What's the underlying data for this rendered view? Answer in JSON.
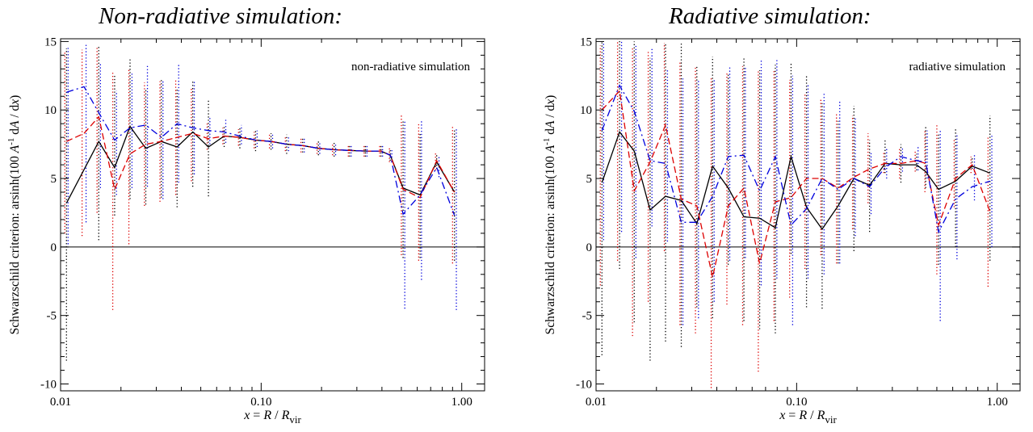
{
  "chart_data": [
    {
      "type": "line",
      "title": "Non-radiative simulation:",
      "annotation": "non-radiative simulation",
      "xlabel_parts": [
        "x",
        " = ",
        "R",
        " / ",
        "R",
        "vir"
      ],
      "ylabel_parts": [
        "Schwarzschild criterion:  arsinh(100 ",
        "A",
        "-1",
        " d",
        "A",
        " / d",
        "x",
        ")"
      ],
      "xscale": "log",
      "xlim": [
        0.01,
        1.3
      ],
      "ylim": [
        -10.5,
        15.2
      ],
      "xticks": [
        0.01,
        0.1,
        1.0
      ],
      "xtick_labels": [
        "0.01",
        "0.10",
        "1.00"
      ],
      "yticks": [
        -10,
        -5,
        0,
        5,
        10,
        15
      ],
      "ytick_labels": [
        "-10",
        "-5",
        "0",
        "5",
        "10",
        "15"
      ],
      "zero_line": 0,
      "series": [
        {
          "style": "solid",
          "color": "#000000",
          "x": [
            0.0107,
            0.0155,
            0.0186,
            0.0222,
            0.0266,
            0.0318,
            0.0381,
            0.0456,
            0.0546,
            0.0654,
            0.0783,
            0.0938,
            0.112,
            0.134,
            0.161,
            0.193,
            0.231,
            0.276,
            0.331,
            0.396,
            0.44,
            0.51,
            0.62,
            0.75,
            0.92
          ],
          "y": [
            3.2,
            7.7,
            5.8,
            8.8,
            7.2,
            7.7,
            7.3,
            8.4,
            7.3,
            8.1,
            8.0,
            7.8,
            7.7,
            7.5,
            7.4,
            7.2,
            7.1,
            7.05,
            7.0,
            7.0,
            6.7,
            4.3,
            3.8,
            6.2,
            4.0
          ]
        },
        {
          "style": "dashed",
          "color": "#dd0000",
          "x": [
            0.0107,
            0.0131,
            0.0155,
            0.0186,
            0.0222,
            0.0266,
            0.0318,
            0.0381,
            0.0456,
            0.0546,
            0.0654,
            0.0783,
            0.0938,
            0.112,
            0.134,
            0.161,
            0.193,
            0.231,
            0.276,
            0.331,
            0.396,
            0.44,
            0.51,
            0.62,
            0.75,
            0.92
          ],
          "y": [
            7.7,
            8.3,
            9.5,
            4.2,
            6.8,
            7.5,
            7.7,
            8.0,
            8.3,
            7.9,
            8.1,
            8.0,
            7.8,
            7.7,
            7.5,
            7.4,
            7.2,
            7.1,
            7.05,
            7.0,
            7.0,
            6.7,
            4.2,
            3.6,
            6.3,
            4.0
          ]
        },
        {
          "style": "dashdot",
          "color": "#0000dd",
          "x": [
            0.0107,
            0.0131,
            0.0155,
            0.0186,
            0.0222,
            0.0266,
            0.0318,
            0.0381,
            0.0456,
            0.0546,
            0.0654,
            0.0783,
            0.0938,
            0.112,
            0.134,
            0.161,
            0.193,
            0.231,
            0.276,
            0.331,
            0.396,
            0.44,
            0.51,
            0.62,
            0.75,
            0.92
          ],
          "y": [
            11.3,
            11.7,
            9.8,
            7.8,
            8.7,
            8.9,
            8.0,
            9.0,
            8.7,
            8.5,
            8.4,
            8.1,
            7.8,
            7.7,
            7.5,
            7.4,
            7.2,
            7.1,
            7.05,
            7.0,
            7.0,
            6.7,
            2.4,
            3.8,
            5.8,
            2.3
          ]
        }
      ],
      "error_bars": [
        {
          "color": "#000000",
          "x": [
            0.0107,
            0.0155,
            0.0186,
            0.0222,
            0.0266,
            0.0318,
            0.0381,
            0.0456,
            0.0546,
            0.0654,
            0.0783,
            0.0938,
            0.112,
            0.134,
            0.161,
            0.193,
            0.231,
            0.276,
            0.331,
            0.396,
            0.44,
            0.51,
            0.62,
            0.75,
            0.92
          ],
          "low": [
            -8.3,
            0.5,
            2.3,
            3.5,
            3.1,
            3.6,
            2.9,
            4.4,
            3.7,
            7.3,
            7.2,
            7.0,
            7.1,
            6.8,
            6.9,
            6.7,
            6.6,
            6.6,
            6.6,
            6.6,
            6.3,
            -0.8,
            -0.8,
            5.7,
            -1.0
          ],
          "high": [
            14.5,
            14.7,
            12.5,
            13.7,
            11.5,
            12.2,
            11.5,
            12.1,
            10.8,
            8.9,
            8.7,
            8.5,
            8.3,
            8.2,
            8.0,
            7.8,
            7.6,
            7.5,
            7.4,
            7.4,
            7.1,
            9.3,
            8.3,
            6.8,
            8.5
          ]
        },
        {
          "color": "#dd0000",
          "x": [
            0.0105,
            0.0128,
            0.0152,
            0.0182,
            0.0219,
            0.0262,
            0.0313,
            0.0375,
            0.0449,
            0.0538,
            0.0644,
            0.0771,
            0.0923,
            0.11,
            0.132,
            0.158,
            0.19,
            0.227,
            0.272,
            0.326,
            0.39,
            0.436,
            0.5,
            0.61,
            0.74,
            0.9
          ],
          "low": [
            1.0,
            0.8,
            2.5,
            -4.6,
            0.2,
            3.0,
            3.3,
            3.8,
            4.8,
            7.1,
            7.5,
            7.4,
            7.2,
            7.2,
            7.0,
            6.9,
            6.8,
            6.7,
            6.6,
            6.6,
            6.6,
            6.2,
            -0.6,
            -1.0,
            5.6,
            -1.2
          ],
          "high": [
            14.3,
            14.4,
            14.6,
            12.8,
            13.0,
            12.0,
            12.1,
            12.2,
            11.7,
            9.0,
            8.7,
            8.6,
            8.4,
            8.2,
            8.1,
            7.9,
            7.7,
            7.6,
            7.5,
            7.4,
            7.4,
            7.2,
            9.6,
            9.1,
            6.9,
            8.8
          ]
        },
        {
          "color": "#0000dd",
          "x": [
            0.0109,
            0.0134,
            0.0158,
            0.019,
            0.0227,
            0.0271,
            0.0324,
            0.0388,
            0.0464,
            0.0555,
            0.0666,
            0.0797,
            0.0955,
            0.114,
            0.137,
            0.164,
            0.196,
            0.235,
            0.281,
            0.337,
            0.403,
            0.448,
            0.52,
            0.63,
            0.77,
            0.94
          ],
          "low": [
            0.2,
            1.8,
            4.3,
            3.8,
            4.3,
            4.4,
            3.5,
            4.7,
            5.3,
            7.5,
            7.6,
            7.5,
            7.3,
            7.2,
            7.0,
            6.9,
            6.8,
            6.7,
            6.6,
            6.6,
            6.6,
            6.3,
            -4.5,
            -2.4,
            5.1,
            -4.6
          ],
          "high": [
            14.6,
            14.8,
            13.4,
            11.4,
            12.8,
            13.3,
            12.1,
            13.4,
            12.1,
            9.5,
            9.3,
            8.9,
            8.5,
            8.3,
            8.1,
            7.9,
            7.7,
            7.6,
            7.5,
            7.4,
            7.4,
            7.1,
            9.2,
            9.2,
            6.6,
            8.6
          ]
        }
      ]
    },
    {
      "type": "line",
      "title": "Radiative simulation:",
      "annotation": "radiative simulation",
      "xlabel_parts": [
        "x",
        " = ",
        "R",
        " / ",
        "R",
        "vir"
      ],
      "ylabel_parts": [
        "Schwarzschild criterion:  arsinh(100 ",
        "A",
        "-1",
        " d",
        "A",
        " / d",
        "x",
        ")"
      ],
      "xscale": "log",
      "xlim": [
        0.01,
        1.3
      ],
      "ylim": [
        -10.5,
        15.2
      ],
      "xticks": [
        0.01,
        0.1,
        1.0
      ],
      "xtick_labels": [
        "0.01",
        "0.10",
        "1.00"
      ],
      "yticks": [
        -10,
        -5,
        0,
        5,
        10,
        15
      ],
      "ytick_labels": [
        "-10",
        "-5",
        "0",
        "5",
        "10",
        "15"
      ],
      "zero_line": 0,
      "series": [
        {
          "style": "solid",
          "color": "#000000",
          "x": [
            0.0107,
            0.0131,
            0.0155,
            0.0186,
            0.0222,
            0.0266,
            0.0318,
            0.0381,
            0.0456,
            0.0546,
            0.0654,
            0.0783,
            0.0938,
            0.112,
            0.134,
            0.161,
            0.193,
            0.231,
            0.276,
            0.331,
            0.396,
            0.44,
            0.51,
            0.62,
            0.75,
            0.92
          ],
          "y": [
            4.7,
            8.4,
            7.0,
            2.7,
            3.7,
            3.4,
            1.7,
            5.9,
            4.3,
            2.2,
            2.1,
            1.4,
            6.6,
            2.9,
            1.3,
            3.0,
            5.0,
            4.5,
            6.1,
            6.0,
            6.0,
            5.5,
            4.2,
            4.8,
            5.9,
            5.4
          ]
        },
        {
          "style": "dashed",
          "color": "#dd0000",
          "x": [
            0.0107,
            0.0131,
            0.0155,
            0.0186,
            0.0222,
            0.0266,
            0.0318,
            0.0381,
            0.0456,
            0.0546,
            0.0654,
            0.0783,
            0.0938,
            0.112,
            0.134,
            0.161,
            0.193,
            0.231,
            0.276,
            0.331,
            0.396,
            0.44,
            0.51,
            0.62,
            0.75,
            0.92
          ],
          "y": [
            10.0,
            11.4,
            4.1,
            6.2,
            8.9,
            3.5,
            3.0,
            -2.2,
            3.0,
            4.3,
            -1.2,
            3.3,
            3.6,
            5.0,
            5.0,
            4.3,
            5.1,
            5.7,
            6.1,
            6.1,
            6.3,
            6.1,
            1.6,
            5.0,
            6.0,
            2.6
          ]
        },
        {
          "style": "dashdot",
          "color": "#0000dd",
          "x": [
            0.0107,
            0.0131,
            0.0155,
            0.0186,
            0.0222,
            0.0266,
            0.0318,
            0.0381,
            0.0456,
            0.0546,
            0.0654,
            0.0783,
            0.0938,
            0.112,
            0.134,
            0.161,
            0.193,
            0.231,
            0.276,
            0.331,
            0.396,
            0.44,
            0.51,
            0.62,
            0.75,
            0.92
          ],
          "y": [
            8.5,
            11.8,
            9.9,
            6.3,
            6.1,
            1.8,
            1.8,
            3.7,
            6.6,
            6.7,
            4.1,
            6.6,
            1.6,
            2.8,
            5.0,
            4.2,
            5.0,
            4.4,
            5.8,
            6.6,
            6.3,
            6.2,
            1.1,
            3.5,
            4.4,
            4.8
          ]
        }
      ],
      "error_bars": [
        {
          "color": "#000000",
          "x": [
            0.0107,
            0.0131,
            0.0155,
            0.0186,
            0.0222,
            0.0266,
            0.0318,
            0.0381,
            0.0456,
            0.0546,
            0.0654,
            0.0783,
            0.0938,
            0.112,
            0.134,
            0.161,
            0.193,
            0.231,
            0.276,
            0.331,
            0.396,
            0.44,
            0.51,
            0.62,
            0.75,
            0.92
          ],
          "low": [
            -7.9,
            -1.6,
            -5.5,
            -8.3,
            -6.9,
            -7.3,
            -4.4,
            -5.2,
            -1.3,
            -5.4,
            -6.0,
            -6.3,
            -0.5,
            -4.4,
            -4.5,
            -1.2,
            -0.3,
            1.1,
            5.4,
            4.7,
            5.6,
            4.3,
            -1.3,
            0.0,
            5.7,
            -1.0
          ],
          "high": [
            15.0,
            15.1,
            15.0,
            13.8,
            14.8,
            14.9,
            13.2,
            13.9,
            12.6,
            13.8,
            12.9,
            13.3,
            13.4,
            12.5,
            10.5,
            9.2,
            10.3,
            7.8,
            7.8,
            7.5,
            6.8,
            8.8,
            8.3,
            8.6,
            6.5,
            9.6
          ]
        },
        {
          "color": "#dd0000",
          "x": [
            0.0105,
            0.0128,
            0.0152,
            0.0182,
            0.0219,
            0.0262,
            0.0313,
            0.0375,
            0.0449,
            0.0538,
            0.0644,
            0.0771,
            0.0923,
            0.11,
            0.132,
            0.158,
            0.19,
            0.227,
            0.272,
            0.326,
            0.39,
            0.436,
            0.5,
            0.61,
            0.74,
            0.9
          ],
          "low": [
            -2.8,
            -1.0,
            -6.5,
            -4.0,
            -0.3,
            -5.7,
            -6.3,
            -10.3,
            -4.2,
            -5.7,
            -9.1,
            -5.4,
            -3.7,
            -1.6,
            -0.6,
            -1.2,
            1.3,
            3.2,
            5.4,
            5.0,
            5.5,
            4.0,
            -2.0,
            2.9,
            5.4,
            -2.9
          ],
          "high": [
            14.7,
            15.1,
            14.6,
            14.3,
            14.9,
            13.6,
            13.2,
            12.4,
            12.8,
            13.2,
            12.9,
            12.9,
            12.2,
            11.2,
            10.9,
            9.8,
            9.6,
            8.3,
            7.0,
            7.2,
            7.0,
            8.5,
            9.0,
            7.8,
            6.6,
            8.1
          ]
        },
        {
          "color": "#0000dd",
          "x": [
            0.0109,
            0.0134,
            0.0158,
            0.019,
            0.0227,
            0.0271,
            0.0324,
            0.0388,
            0.0464,
            0.0555,
            0.0666,
            0.0797,
            0.0955,
            0.114,
            0.137,
            0.164,
            0.196,
            0.235,
            0.281,
            0.337,
            0.403,
            0.448,
            0.52,
            0.63,
            0.77,
            0.94
          ],
          "low": [
            0.5,
            1.1,
            -0.8,
            1.5,
            0.4,
            -5.7,
            -5.2,
            -4.0,
            -1.0,
            -0.8,
            -2.8,
            -2.3,
            -5.7,
            -2.3,
            -2.0,
            -1.2,
            0.8,
            2.4,
            5.0,
            5.5,
            5.6,
            5.0,
            -5.4,
            -0.9,
            3.4,
            0.0
          ],
          "high": [
            15.0,
            15.0,
            14.7,
            14.5,
            13.0,
            12.3,
            12.2,
            12.3,
            13.1,
            13.1,
            13.6,
            13.7,
            12.5,
            11.9,
            11.3,
            10.6,
            9.4,
            7.0,
            7.2,
            7.2,
            7.3,
            8.5,
            8.5,
            8.3,
            6.7,
            8.2
          ]
        }
      ]
    }
  ]
}
